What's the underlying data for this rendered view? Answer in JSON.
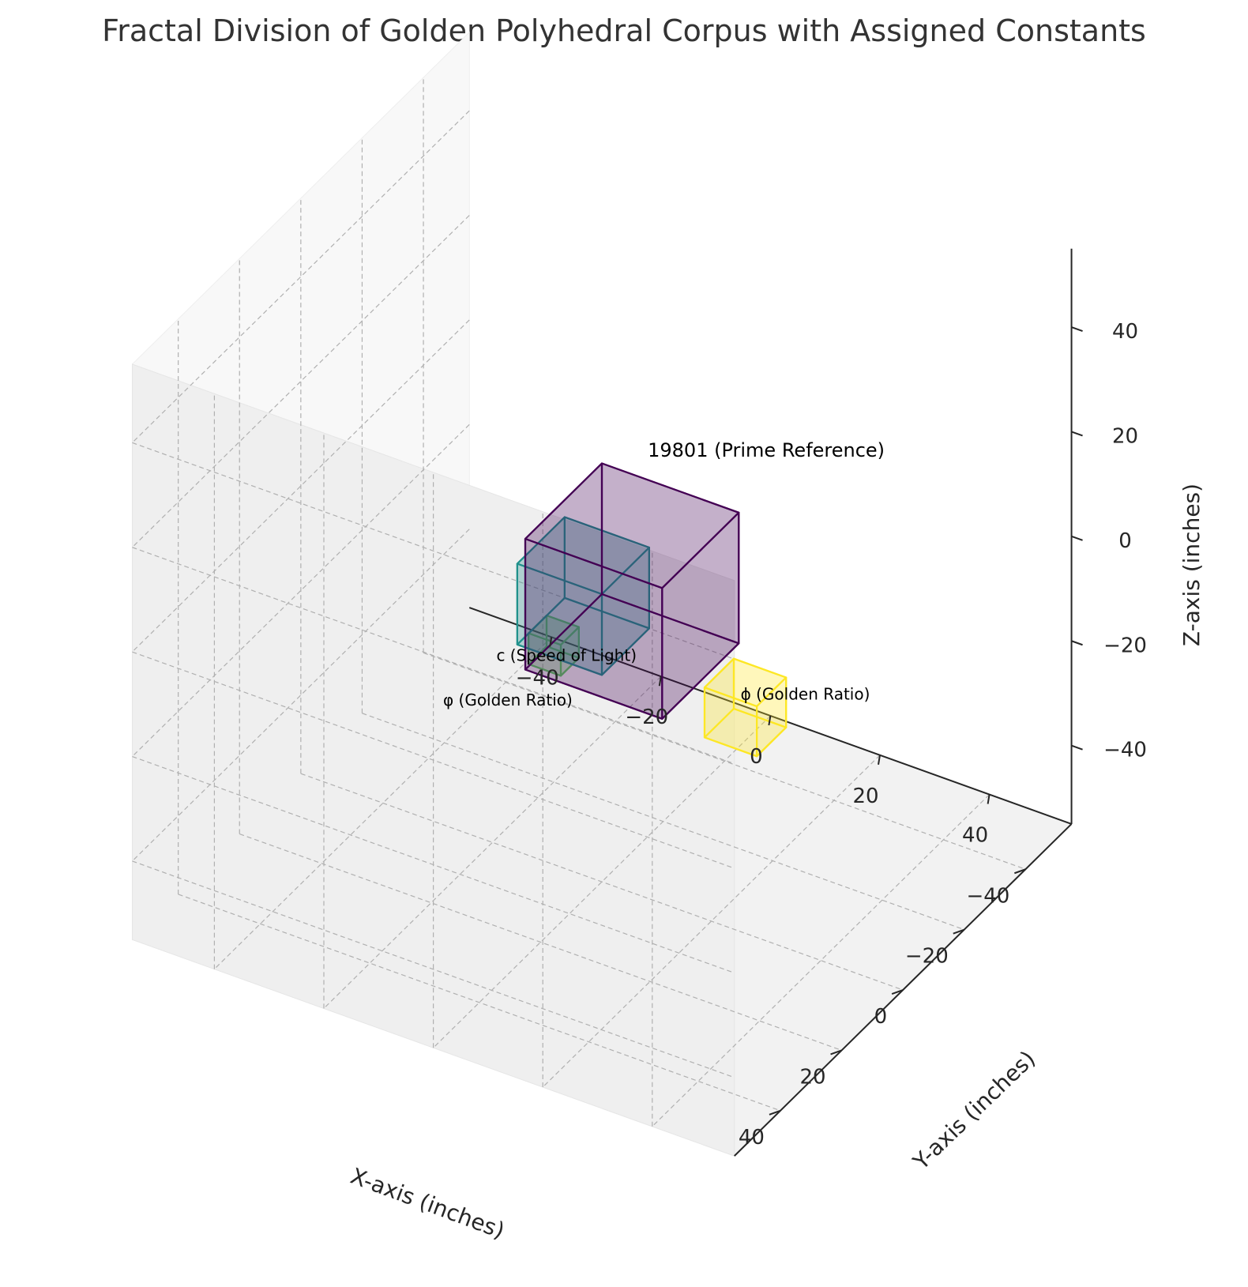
{
  "chart_data": {
    "type": "3d-box",
    "title": "Fractal Division of Golden Polyhedral Corpus with Assigned Constants",
    "xlabel": "X-axis (inches)",
    "ylabel": "Y-axis (inches)",
    "zlabel": "Z-axis (inches)",
    "xlim": [
      -55,
      55
    ],
    "ylim": [
      -55,
      55
    ],
    "zlim": [
      -55,
      55
    ],
    "xticks": [
      "−40",
      "−20",
      "0",
      "20",
      "40"
    ],
    "yticks": [
      "−40",
      "−20",
      "0",
      "20",
      "40"
    ],
    "zticks": [
      "−40",
      "−20",
      "0",
      "20",
      "40"
    ],
    "grid": true,
    "boxes": [
      {
        "label": "19801 (Prime Reference)",
        "origin": [
          0,
          0,
          0
        ],
        "size": [
          25,
          25,
          25
        ],
        "color": "#440154"
      },
      {
        "label": "c (Speed of Light)",
        "origin": [
          -15.45,
          -15.45,
          -15.45
        ],
        "size": [
          15.45,
          15.45,
          15.45
        ],
        "color": "#21918c"
      },
      {
        "label": "φ (Golden Ratio)",
        "origin": [
          -15.45,
          -9.55,
          -21.3
        ],
        "size": [
          5.9,
          5.9,
          5.9
        ],
        "color": "#5ec962"
      },
      {
        "label": "ϕ (Golden Ratio)",
        "origin": [
          15.45,
          -15.45,
          -25
        ],
        "size": [
          9.55,
          9.55,
          9.55
        ],
        "color": "#fde725"
      }
    ]
  }
}
